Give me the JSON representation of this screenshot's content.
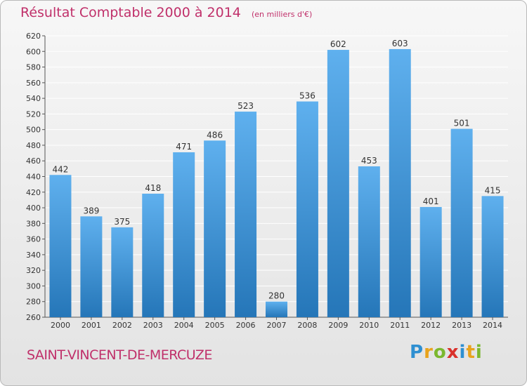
{
  "title": "Résultat Comptable 2000 à 2014",
  "subtitle": "(en milliers d'€)",
  "commune": "SAINT-VINCENT-DE-MERCUZE",
  "logo": {
    "text": "Proxiti",
    "letters": [
      "P",
      "r",
      "o",
      "x",
      "i",
      "t",
      "i"
    ],
    "colors": [
      "#2e8fd1",
      "#e8a31c",
      "#7cb82f",
      "#d9312b",
      "#2e8fd1",
      "#e8a31c",
      "#7cb82f"
    ]
  },
  "colors": {
    "accent": "#c0306a",
    "bar_top": "#5fb0ee",
    "bar_bottom": "#2576b8",
    "grid": "#ffffff",
    "text": "#333333"
  },
  "chart_data": {
    "type": "bar",
    "categories": [
      "2000",
      "2001",
      "2002",
      "2003",
      "2004",
      "2005",
      "2006",
      "2007",
      "2008",
      "2009",
      "2010",
      "2011",
      "2012",
      "2013",
      "2014"
    ],
    "values": [
      442,
      389,
      375,
      418,
      471,
      486,
      523,
      280,
      536,
      602,
      453,
      603,
      401,
      501,
      415
    ],
    "ylim": [
      260,
      620
    ],
    "yticks": [
      260,
      280,
      300,
      320,
      340,
      360,
      380,
      400,
      420,
      440,
      460,
      480,
      500,
      520,
      540,
      560,
      580,
      600,
      620
    ],
    "grid": true,
    "xlabel": "",
    "ylabel": ""
  }
}
